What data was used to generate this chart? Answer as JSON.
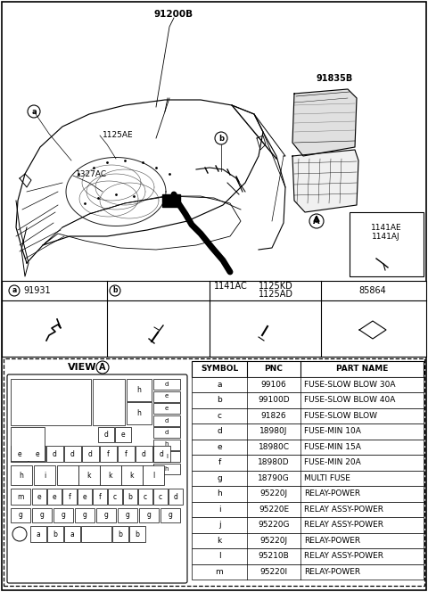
{
  "bg_color": "#ffffff",
  "table_headers": [
    "SYMBOL",
    "PNC",
    "PART NAME"
  ],
  "table_data": [
    [
      "a",
      "99106",
      "FUSE-SLOW BLOW 30A"
    ],
    [
      "b",
      "99100D",
      "FUSE-SLOW BLOW 40A"
    ],
    [
      "c",
      "91826",
      "FUSE-SLOW BLOW"
    ],
    [
      "d",
      "18980J",
      "FUSE-MIN 10A"
    ],
    [
      "e",
      "18980C",
      "FUSE-MIN 15A"
    ],
    [
      "f",
      "18980D",
      "FUSE-MIN 20A"
    ],
    [
      "g",
      "18790G",
      "MULTI FUSE"
    ],
    [
      "h",
      "95220J",
      "RELAY-POWER"
    ],
    [
      "i",
      "95220E",
      "RELAY ASSY-POWER"
    ],
    [
      "j",
      "95220G",
      "RELAY ASSY-POWER"
    ],
    [
      "k",
      "95220J",
      "RELAY-POWER"
    ],
    [
      "l",
      "95210B",
      "RELAY ASSY-POWER"
    ],
    [
      "m",
      "95220I",
      "RELAY-POWER"
    ]
  ]
}
